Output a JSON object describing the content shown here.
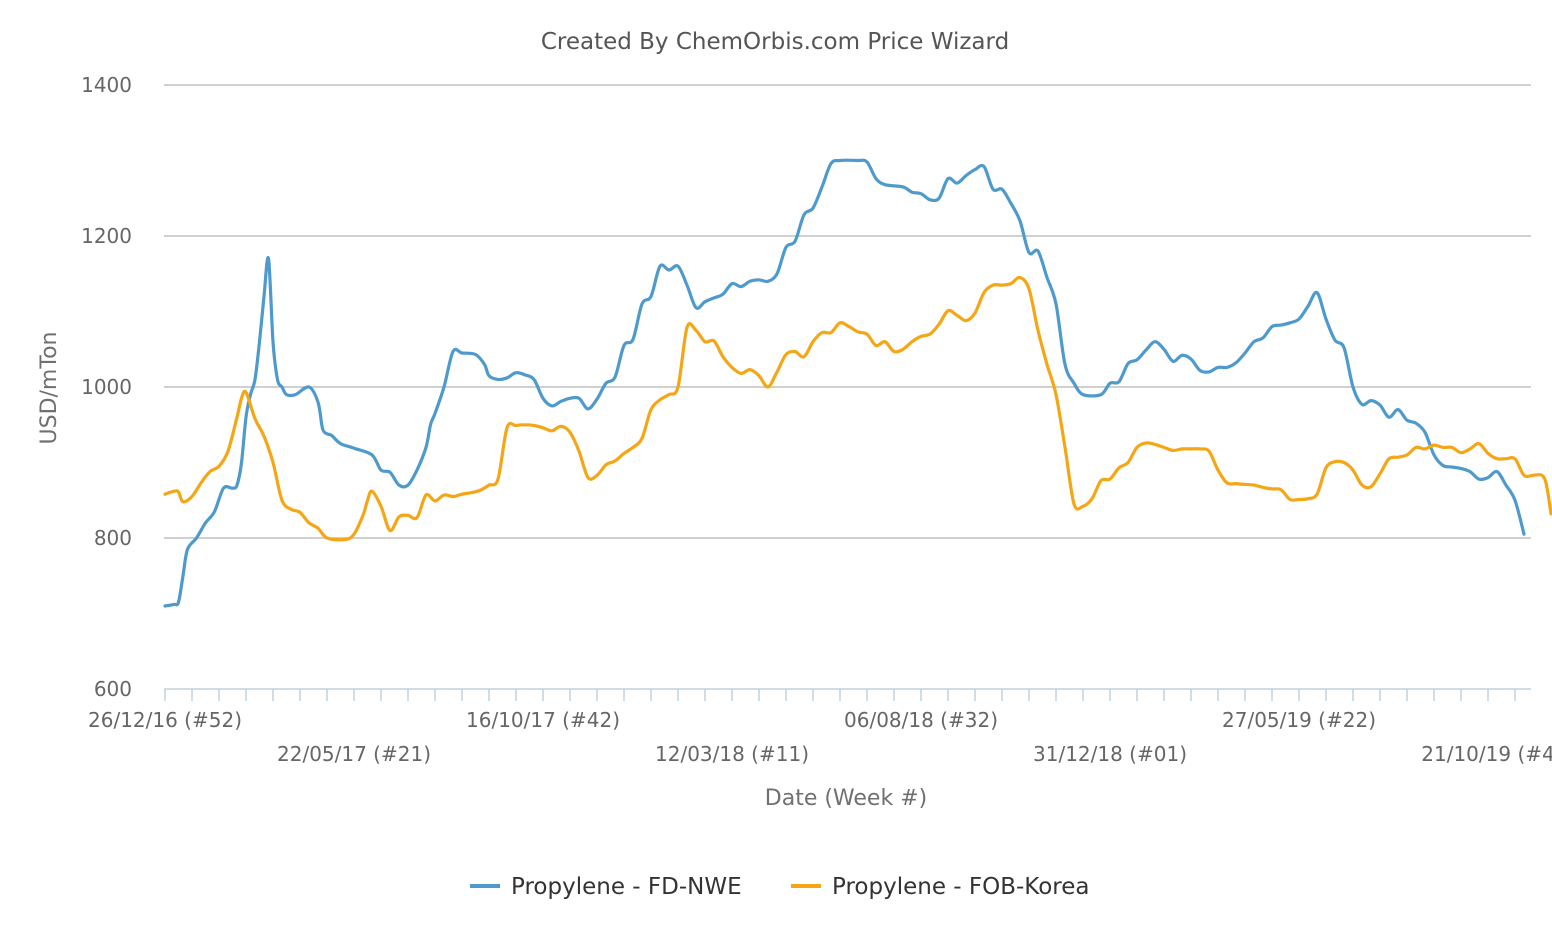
{
  "chart_data": {
    "type": "line",
    "title": "Created By ChemOrbis.com Price Wizard",
    "xlabel": "Date (Week #)",
    "ylabel": "USD/mTon",
    "ylim": [
      600,
      1400
    ],
    "yticks": [
      600,
      800,
      1000,
      1200,
      1400
    ],
    "x_tick_labels": [
      "26/12/16 (#52)",
      "22/05/17 (#21)",
      "16/10/17 (#42)",
      "12/03/18 (#11)",
      "06/08/18 (#32)",
      "31/12/18 (#01)",
      "27/05/19 (#22)",
      "21/10/19 (#4"
    ],
    "x_weeks_total": 150,
    "series": [
      {
        "name": "Propylene - FD-NWE",
        "color": "#4e9acd",
        "points": [
          [
            0,
            710
          ],
          [
            1,
            712
          ],
          [
            1.5,
            715
          ],
          [
            2,
            750
          ],
          [
            2.5,
            785
          ],
          [
            3.5,
            800
          ],
          [
            4.5,
            820
          ],
          [
            5.5,
            835
          ],
          [
            6.5,
            866
          ],
          [
            7.5,
            866
          ],
          [
            8,
            870
          ],
          [
            8.5,
            900
          ],
          [
            9,
            960
          ],
          [
            9.5,
            990
          ],
          [
            10,
            1010
          ],
          [
            10.5,
            1060
          ],
          [
            11,
            1120
          ],
          [
            11.5,
            1170
          ],
          [
            12,
            1060
          ],
          [
            12.5,
            1010
          ],
          [
            13,
            1000
          ],
          [
            13.5,
            990
          ],
          [
            14.5,
            990
          ],
          [
            16,
            1000
          ],
          [
            17,
            980
          ],
          [
            17.5,
            945
          ],
          [
            18,
            938
          ],
          [
            18.5,
            936
          ],
          [
            19.5,
            925
          ],
          [
            21,
            919
          ],
          [
            23,
            910
          ],
          [
            24,
            890
          ],
          [
            25,
            887
          ],
          [
            26,
            870
          ],
          [
            27,
            870
          ],
          [
            28,
            890
          ],
          [
            29,
            920
          ],
          [
            29.5,
            950
          ],
          [
            30,
            965
          ],
          [
            31,
            1000
          ],
          [
            32,
            1047
          ],
          [
            33,
            1045
          ],
          [
            34.5,
            1043
          ],
          [
            35.5,
            1030
          ],
          [
            36,
            1015
          ],
          [
            37,
            1010
          ],
          [
            38,
            1012
          ],
          [
            39,
            1019
          ],
          [
            40,
            1016
          ],
          [
            41,
            1010
          ],
          [
            42,
            985
          ],
          [
            43,
            975
          ],
          [
            44,
            981
          ],
          [
            45,
            985
          ],
          [
            46,
            985
          ],
          [
            47,
            971
          ],
          [
            48,
            984
          ],
          [
            49,
            1005
          ],
          [
            50,
            1013
          ],
          [
            51,
            1055
          ],
          [
            52,
            1063
          ],
          [
            53,
            1110
          ],
          [
            54,
            1120
          ],
          [
            55,
            1160
          ],
          [
            56,
            1155
          ],
          [
            57,
            1160
          ],
          [
            58,
            1135
          ],
          [
            59,
            1105
          ],
          [
            60,
            1113
          ],
          [
            61,
            1118
          ],
          [
            62,
            1123
          ],
          [
            63,
            1137
          ],
          [
            64,
            1133
          ],
          [
            65,
            1140
          ],
          [
            66,
            1142
          ],
          [
            67,
            1140
          ],
          [
            68,
            1150
          ],
          [
            69,
            1185
          ],
          [
            70,
            1193
          ],
          [
            71,
            1228
          ],
          [
            72,
            1237
          ],
          [
            73,
            1265
          ],
          [
            74,
            1296
          ],
          [
            75,
            1300
          ],
          [
            77,
            1300
          ],
          [
            78,
            1298
          ],
          [
            79,
            1276
          ],
          [
            80,
            1268
          ],
          [
            82,
            1265
          ],
          [
            83,
            1258
          ],
          [
            84,
            1256
          ],
          [
            85,
            1248
          ],
          [
            86,
            1250
          ],
          [
            87,
            1276
          ],
          [
            88,
            1270
          ],
          [
            89,
            1280
          ],
          [
            90,
            1288
          ],
          [
            91,
            1292
          ],
          [
            92,
            1262
          ],
          [
            93,
            1262
          ],
          [
            94,
            1243
          ],
          [
            95,
            1220
          ],
          [
            96,
            1178
          ],
          [
            97,
            1180
          ],
          [
            98,
            1145
          ],
          [
            99,
            1110
          ],
          [
            100,
            1030
          ],
          [
            101,
            1005
          ],
          [
            102,
            990
          ],
          [
            104,
            990
          ],
          [
            105,
            1005
          ],
          [
            106,
            1007
          ],
          [
            107,
            1031
          ],
          [
            108,
            1036
          ],
          [
            109,
            1049
          ],
          [
            110,
            1060
          ],
          [
            111,
            1050
          ],
          [
            112,
            1034
          ],
          [
            113,
            1042
          ],
          [
            114,
            1037
          ],
          [
            115,
            1022
          ],
          [
            116,
            1020
          ],
          [
            117,
            1026
          ],
          [
            118,
            1026
          ],
          [
            119,
            1032
          ],
          [
            120,
            1045
          ],
          [
            121,
            1060
          ],
          [
            122,
            1065
          ],
          [
            123,
            1080
          ],
          [
            124,
            1082
          ],
          [
            125,
            1085
          ],
          [
            126,
            1090
          ],
          [
            127,
            1107
          ],
          [
            128,
            1125
          ],
          [
            129,
            1090
          ],
          [
            130,
            1062
          ],
          [
            131,
            1052
          ],
          [
            132,
            1000
          ],
          [
            133,
            977
          ],
          [
            134,
            982
          ],
          [
            135,
            976
          ],
          [
            136,
            960
          ],
          [
            137,
            970
          ],
          [
            138,
            956
          ],
          [
            139,
            952
          ],
          [
            140,
            940
          ],
          [
            141,
            910
          ],
          [
            142,
            896
          ],
          [
            143,
            894
          ],
          [
            144,
            892
          ],
          [
            145,
            888
          ],
          [
            146,
            878
          ],
          [
            147,
            880
          ],
          [
            148,
            888
          ],
          [
            149,
            870
          ],
          [
            150,
            850
          ],
          [
            151,
            805
          ]
        ]
      },
      {
        "name": "Propylene - FOB-Korea",
        "color": "#f5a614",
        "points": [
          [
            0,
            858
          ],
          [
            1,
            862
          ],
          [
            1.5,
            861
          ],
          [
            2,
            848
          ],
          [
            3,
            855
          ],
          [
            4,
            873
          ],
          [
            5,
            888
          ],
          [
            6,
            895
          ],
          [
            7,
            915
          ],
          [
            8,
            960
          ],
          [
            8.5,
            985
          ],
          [
            9,
            993
          ],
          [
            10,
            958
          ],
          [
            11,
            935
          ],
          [
            12,
            900
          ],
          [
            13,
            850
          ],
          [
            14,
            838
          ],
          [
            15,
            834
          ],
          [
            16,
            820
          ],
          [
            17,
            813
          ],
          [
            18,
            800
          ],
          [
            20,
            798
          ],
          [
            21,
            805
          ],
          [
            22,
            830
          ],
          [
            22.5,
            850
          ],
          [
            23,
            862
          ],
          [
            24,
            842
          ],
          [
            25,
            810
          ],
          [
            26,
            828
          ],
          [
            27,
            830
          ],
          [
            28,
            827
          ],
          [
            29,
            857
          ],
          [
            30,
            849
          ],
          [
            31,
            857
          ],
          [
            32,
            855
          ],
          [
            33,
            858
          ],
          [
            34,
            860
          ],
          [
            35,
            863
          ],
          [
            36,
            870
          ],
          [
            37,
            878
          ],
          [
            38,
            946
          ],
          [
            39,
            949
          ],
          [
            40,
            950
          ],
          [
            41,
            949
          ],
          [
            42,
            946
          ],
          [
            43,
            942
          ],
          [
            44,
            948
          ],
          [
            45,
            940
          ],
          [
            46,
            915
          ],
          [
            47,
            880
          ],
          [
            48,
            883
          ],
          [
            49,
            897
          ],
          [
            50,
            902
          ],
          [
            51,
            912
          ],
          [
            52,
            920
          ],
          [
            53,
            932
          ],
          [
            54,
            970
          ],
          [
            55,
            983
          ],
          [
            56,
            990
          ],
          [
            57,
            1000
          ],
          [
            58,
            1079
          ],
          [
            59,
            1075
          ],
          [
            60,
            1060
          ],
          [
            61,
            1061
          ],
          [
            62,
            1040
          ],
          [
            63,
            1026
          ],
          [
            64,
            1018
          ],
          [
            65,
            1023
          ],
          [
            66,
            1015
          ],
          [
            67,
            1000
          ],
          [
            68,
            1020
          ],
          [
            69,
            1043
          ],
          [
            70,
            1047
          ],
          [
            71,
            1040
          ],
          [
            72,
            1060
          ],
          [
            73,
            1072
          ],
          [
            74,
            1072
          ],
          [
            75,
            1085
          ],
          [
            76,
            1080
          ],
          [
            77,
            1073
          ],
          [
            78,
            1070
          ],
          [
            79,
            1055
          ],
          [
            80,
            1060
          ],
          [
            81,
            1047
          ],
          [
            82,
            1050
          ],
          [
            83,
            1060
          ],
          [
            84,
            1067
          ],
          [
            85,
            1070
          ],
          [
            86,
            1083
          ],
          [
            87,
            1101
          ],
          [
            88,
            1095
          ],
          [
            89,
            1088
          ],
          [
            90,
            1098
          ],
          [
            91,
            1125
          ],
          [
            92,
            1135
          ],
          [
            93,
            1135
          ],
          [
            94,
            1137
          ],
          [
            95,
            1145
          ],
          [
            96,
            1130
          ],
          [
            97,
            1075
          ],
          [
            98,
            1030
          ],
          [
            99,
            990
          ],
          [
            100,
            920
          ],
          [
            101,
            845
          ],
          [
            102,
            842
          ],
          [
            103,
            852
          ],
          [
            104,
            876
          ],
          [
            105,
            878
          ],
          [
            106,
            893
          ],
          [
            107,
            900
          ],
          [
            108,
            920
          ],
          [
            109,
            926
          ],
          [
            110,
            924
          ],
          [
            111,
            920
          ],
          [
            112,
            916
          ],
          [
            113,
            918
          ],
          [
            114,
            918
          ],
          [
            115,
            918
          ],
          [
            116,
            915
          ],
          [
            117,
            890
          ],
          [
            118,
            873
          ],
          [
            119,
            872
          ],
          [
            120,
            871
          ],
          [
            121,
            870
          ],
          [
            122,
            867
          ],
          [
            123,
            865
          ],
          [
            124,
            864
          ],
          [
            125,
            851
          ],
          [
            126,
            851
          ],
          [
            127,
            852
          ],
          [
            128,
            858
          ],
          [
            129,
            893
          ],
          [
            130,
            901
          ],
          [
            131,
            900
          ],
          [
            132,
            890
          ],
          [
            133,
            870
          ],
          [
            134,
            868
          ],
          [
            135,
            885
          ],
          [
            136,
            905
          ],
          [
            137,
            907
          ],
          [
            138,
            910
          ],
          [
            139,
            920
          ],
          [
            140,
            918
          ],
          [
            141,
            923
          ],
          [
            142,
            920
          ],
          [
            143,
            920
          ],
          [
            144,
            913
          ],
          [
            145,
            918
          ],
          [
            146,
            925
          ],
          [
            147,
            912
          ],
          [
            148,
            905
          ],
          [
            149,
            905
          ],
          [
            150,
            905
          ],
          [
            151,
            883
          ],
          [
            152,
            883
          ],
          [
            153,
            883
          ],
          [
            153.5,
            870
          ],
          [
            154,
            832
          ]
        ]
      }
    ]
  }
}
